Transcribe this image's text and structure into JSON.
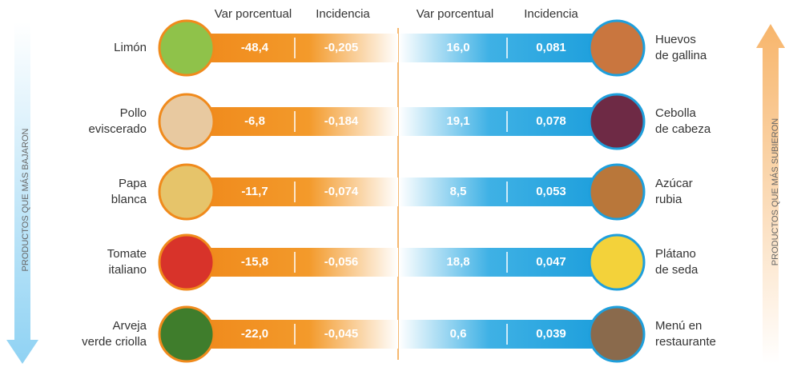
{
  "headers": {
    "left": [
      "Var porcentual",
      "Incidencia"
    ],
    "right": [
      "Var porcentual",
      "Incidencia"
    ]
  },
  "side_labels": {
    "left": "PRODUCTOS QUE MÁS BAJARON",
    "right": "PRODUCTOS QUE MÁS SUBIERON"
  },
  "left_rows": [
    {
      "name": [
        "Limón"
      ],
      "var": "-48,4",
      "incidence": "-0,205"
    },
    {
      "name": [
        "Pollo",
        "eviscerado"
      ],
      "var": "-6,8",
      "incidence": "-0,184"
    },
    {
      "name": [
        "Papa",
        "blanca"
      ],
      "var": "-11,7",
      "incidence": "-0,074"
    },
    {
      "name": [
        "Tomate",
        "italiano"
      ],
      "var": "-15,8",
      "incidence": "-0,056"
    },
    {
      "name": [
        "Arveja",
        "verde criolla"
      ],
      "var": "-22,0",
      "incidence": "-0,045"
    }
  ],
  "right_rows": [
    {
      "name": [
        "Huevos",
        "de gallina"
      ],
      "var": "16,0",
      "incidence": "0,081"
    },
    {
      "name": [
        "Cebolla",
        "de cabeza"
      ],
      "var": "19,1",
      "incidence": "0,078"
    },
    {
      "name": [
        "Azúcar",
        "rubia"
      ],
      "var": "8,5",
      "incidence": "0,053"
    },
    {
      "name": [
        "Plátano",
        "de seda"
      ],
      "var": "18,8",
      "incidence": "0,047"
    },
    {
      "name": [
        "Menú en",
        "restaurante"
      ],
      "var": "0,6",
      "incidence": "0,039"
    }
  ]
}
